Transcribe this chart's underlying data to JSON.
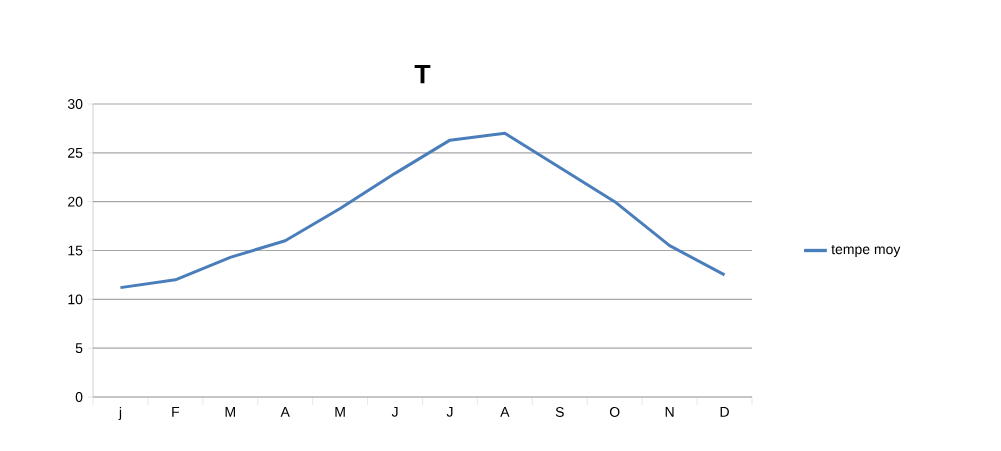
{
  "chart_data": {
    "type": "line",
    "title": "T",
    "categories": [
      "j",
      "F",
      "M",
      "A",
      "M",
      "J",
      "J",
      "A",
      "S",
      "O",
      "N",
      "D"
    ],
    "series": [
      {
        "name": "tempe moy",
        "color": "#4a7ebb",
        "values": [
          11.2,
          12,
          14.3,
          16,
          19.3,
          22.9,
          26.3,
          27,
          23.5,
          20,
          15.5,
          12.5
        ]
      }
    ],
    "ylim": [
      0,
      30
    ],
    "yticks": [
      0,
      5,
      10,
      15,
      20,
      25,
      30
    ],
    "grid": "y",
    "legend": "right",
    "marker": "none",
    "line_style": "solid"
  }
}
